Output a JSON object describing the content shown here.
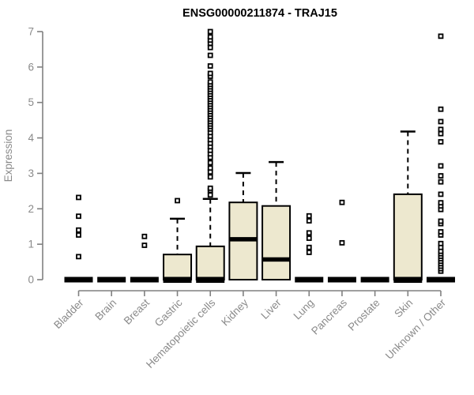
{
  "window": {
    "background": "#ffffff"
  },
  "chart_data": {
    "type": "boxplot",
    "title": "ENSG00000211874 - TRAJ15",
    "xlabel": "",
    "ylabel": "Expression",
    "ylim": [
      0,
      7
    ],
    "yticks": [
      0,
      1,
      2,
      3,
      4,
      5,
      6,
      7
    ],
    "grid": false,
    "legend": false,
    "colors": {
      "box_fill": "#ede8cf",
      "box_stroke": "#000000",
      "median": "#000000",
      "outlier_stroke": "#000000",
      "axis": "#808080",
      "tick_label": "#8a8a8a",
      "title": "#000000",
      "background": "#ffffff"
    },
    "categories": [
      "Bladder",
      "Brain",
      "Breast",
      "Gastric",
      "Hematopoietic cells",
      "Kidney",
      "Liver",
      "Lung",
      "Pancreas",
      "Prostate",
      "Skin",
      "Unknown / Other"
    ],
    "series": [
      {
        "name": "Bladder",
        "whisker_low": 0,
        "q1": 0,
        "median": 0,
        "q3": 0,
        "whisker_high": 0,
        "outliers": [
          0.65,
          1.26,
          1.4,
          1.79,
          2.32
        ]
      },
      {
        "name": "Brain",
        "whisker_low": 0,
        "q1": 0,
        "median": 0,
        "q3": 0,
        "whisker_high": 0,
        "outliers": []
      },
      {
        "name": "Breast",
        "whisker_low": 0,
        "q1": 0,
        "median": 0,
        "q3": 0,
        "whisker_high": 0,
        "outliers": [
          0.97,
          1.22
        ]
      },
      {
        "name": "Gastric",
        "whisker_low": 0,
        "q1": 0,
        "median": 0,
        "q3": 0.71,
        "whisker_high": 1.72,
        "outliers": [
          2.23
        ]
      },
      {
        "name": "Hematopoietic cells",
        "whisker_low": 0,
        "q1": 0,
        "median": 0,
        "q3": 0.94,
        "whisker_high": 2.28,
        "outliers": [
          2.39,
          2.52,
          2.58,
          2.9,
          3.04,
          3.15,
          3.3,
          3.45,
          3.55,
          3.65,
          3.75,
          3.85,
          3.95,
          4.05,
          4.15,
          4.25,
          4.32,
          4.39,
          4.46,
          4.53,
          4.6,
          4.67,
          4.74,
          4.81,
          4.88,
          4.95,
          5.02,
          5.09,
          5.16,
          5.23,
          5.3,
          5.37,
          5.44,
          5.51,
          5.58,
          5.74,
          5.82,
          6.03,
          6.33,
          6.55,
          6.67,
          6.76,
          6.85,
          7.0
        ]
      },
      {
        "name": "Kidney",
        "whisker_low": 0,
        "q1": 0,
        "median": 1.14,
        "q3": 2.18,
        "whisker_high": 3.01,
        "outliers": []
      },
      {
        "name": "Liver",
        "whisker_low": 0,
        "q1": 0,
        "median": 0.57,
        "q3": 2.08,
        "whisker_high": 3.32,
        "outliers": []
      },
      {
        "name": "Lung",
        "whisker_low": 0,
        "q1": 0,
        "median": 0,
        "q3": 0,
        "whisker_high": 0,
        "outliers": [
          0.77,
          0.91,
          1.17,
          1.32,
          1.66,
          1.8
        ]
      },
      {
        "name": "Pancreas",
        "whisker_low": 0,
        "q1": 0,
        "median": 0,
        "q3": 0,
        "whisker_high": 0,
        "outliers": [
          1.04,
          2.18
        ]
      },
      {
        "name": "Prostate",
        "whisker_low": 0,
        "q1": 0,
        "median": 0,
        "q3": 0,
        "whisker_high": 0,
        "outliers": []
      },
      {
        "name": "Skin",
        "whisker_low": 0,
        "q1": 0,
        "median": 0,
        "q3": 2.41,
        "whisker_high": 4.18,
        "outliers": []
      },
      {
        "name": "Unknown / Other",
        "whisker_low": 0,
        "q1": 0,
        "median": 0,
        "q3": 0,
        "whisker_high": 0,
        "outliers": [
          0.24,
          0.31,
          0.38,
          0.45,
          0.52,
          0.59,
          0.66,
          0.73,
          0.8,
          0.91,
          1.02,
          1.26,
          1.35,
          1.58,
          1.65,
          1.98,
          2.08,
          2.17,
          2.41,
          2.76,
          2.93,
          3.21,
          3.89,
          4.12,
          4.24,
          4.46,
          4.81,
          6.87
        ]
      }
    ]
  }
}
